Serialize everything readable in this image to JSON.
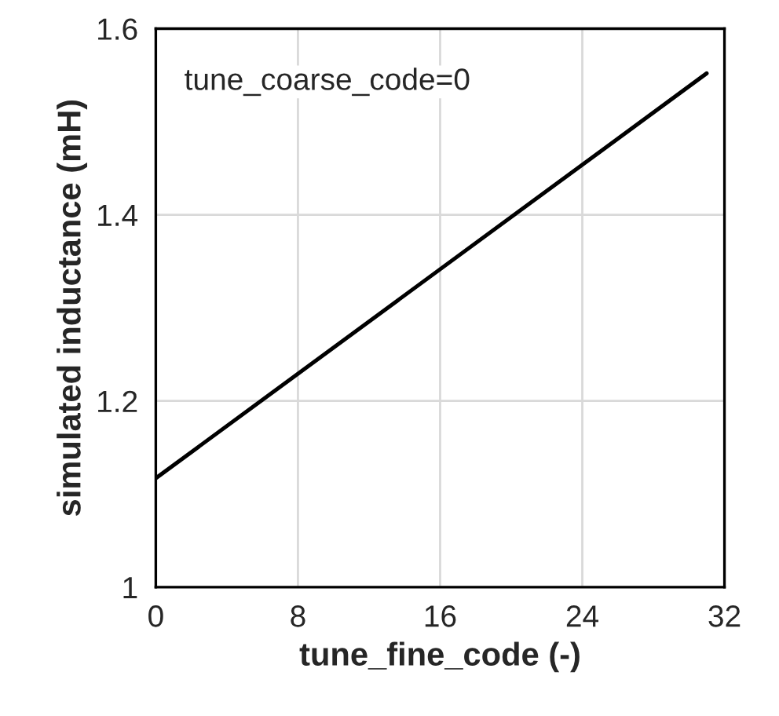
{
  "chart_data": {
    "type": "line",
    "xlabel": "tune_fine_code (-)",
    "ylabel": "simulated inductance (mH)",
    "annotations": [
      "tune_coarse_code=0"
    ],
    "x": [
      0,
      31
    ],
    "series": [
      {
        "color": "#000000",
        "values": [
          1.117,
          1.552
        ]
      }
    ],
    "xlim": [
      0,
      32
    ],
    "xticks": [
      0,
      8,
      16,
      24,
      32
    ],
    "ylim": [
      1,
      1.6
    ],
    "yticks": [
      1,
      1.2,
      1.4,
      1.6
    ],
    "grid": true,
    "marker": "none",
    "line_style": "solid"
  }
}
